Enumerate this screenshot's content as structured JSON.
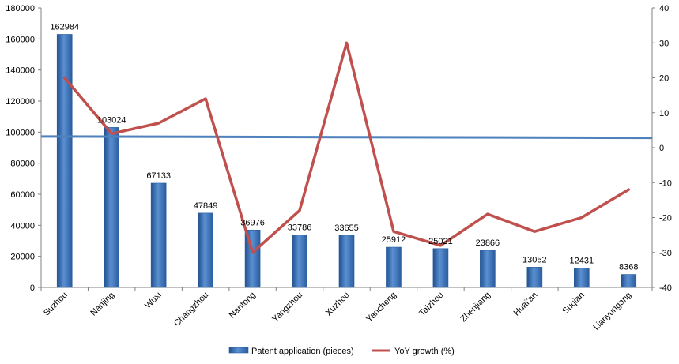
{
  "chart_data": {
    "type": "bar",
    "categories": [
      "Suzhou",
      "Nanjing",
      "Wuxi",
      "Changzhou",
      "Nantong",
      "Yangzhou",
      "Xuzhou",
      "Yancheng",
      "Taizhou",
      "Zhenjiang",
      "Huai’an",
      "Suqian",
      "Lianyungang"
    ],
    "series": [
      {
        "name": "Patent application (pieces)",
        "type": "bar",
        "axis": "left",
        "color": "#3A73B8",
        "values": [
          162984,
          103024,
          67133,
          47849,
          36976,
          33786,
          33655,
          25912,
          25021,
          23866,
          13052,
          12431,
          8368
        ],
        "labels": [
          "162984",
          "103024",
          "67133",
          "47849",
          "36976",
          "33786",
          "33655",
          "25912",
          "25021",
          "23866",
          "13052",
          "12431",
          "8368"
        ]
      },
      {
        "name": "YoY growth (%)",
        "type": "line",
        "axis": "right",
        "color": "#C0504D",
        "values": [
          20,
          4,
          7,
          14,
          -30,
          -18,
          30,
          -24,
          -28,
          -19,
          -24,
          -20,
          -12
        ]
      }
    ],
    "reference_line": {
      "axis": "right",
      "value_start": 3.2,
      "value_end": 2.8,
      "color": "#4F81BD"
    },
    "ylim_left": [
      0,
      180000
    ],
    "yticks_left": [
      "180000",
      "160000",
      "140000",
      "120000",
      "100000",
      "80000",
      "60000",
      "40000",
      "20000",
      "0"
    ],
    "ylim_right": [
      -40,
      40
    ],
    "yticks_right": [
      "40",
      "30",
      "20",
      "10",
      "0",
      "-10",
      "-20",
      "-30",
      "-40"
    ],
    "title": "",
    "xlabel": "",
    "ylabel": "",
    "grid": false,
    "legend_position": "bottom"
  }
}
